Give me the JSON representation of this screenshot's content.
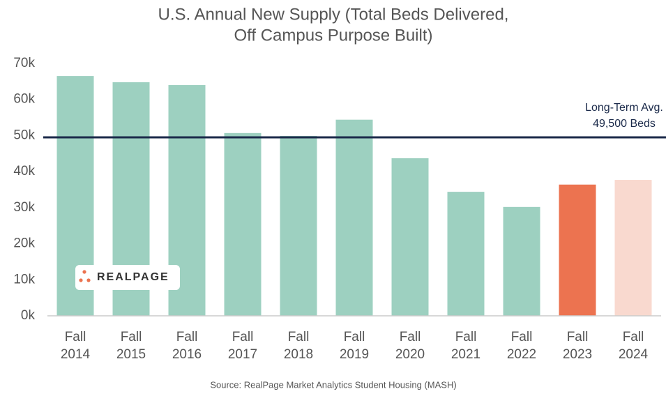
{
  "chart_data": {
    "type": "bar",
    "title": [
      "U.S. Annual New Supply (Total Beds Delivered,",
      "Off Campus Purpose Built)"
    ],
    "categories": [
      "Fall 2014",
      "Fall 2015",
      "Fall 2016",
      "Fall 2017",
      "Fall 2018",
      "Fall 2019",
      "Fall 2020",
      "Fall 2021",
      "Fall 2022",
      "Fall 2023",
      "Fall 2024"
    ],
    "values": [
      66500,
      64800,
      64000,
      50700,
      49900,
      54400,
      43700,
      34400,
      30200,
      36400,
      37700
    ],
    "colors": [
      "#9dd0c0",
      "#9dd0c0",
      "#9dd0c0",
      "#9dd0c0",
      "#9dd0c0",
      "#9dd0c0",
      "#9dd0c0",
      "#9dd0c0",
      "#9dd0c0",
      "#ec7350",
      "#f9d9cf"
    ],
    "ylim": [
      0,
      70000
    ],
    "yticks": [
      {
        "value": 0,
        "label": "0k"
      },
      {
        "value": 10000,
        "label": "10k"
      },
      {
        "value": 20000,
        "label": "20k"
      },
      {
        "value": 30000,
        "label": "30k"
      },
      {
        "value": 40000,
        "label": "40k"
      },
      {
        "value": 50000,
        "label": "50k"
      },
      {
        "value": 60000,
        "label": "60k"
      },
      {
        "value": 70000,
        "label": "70k"
      }
    ],
    "reference_line": {
      "value": 49500,
      "label": [
        "Long-Term Avg.",
        "49,500 Beds"
      ],
      "color": "#1b2a4a"
    },
    "logo": "REALPAGE",
    "source": "Source: RealPage Market Analytics Student Housing (MASH)"
  }
}
